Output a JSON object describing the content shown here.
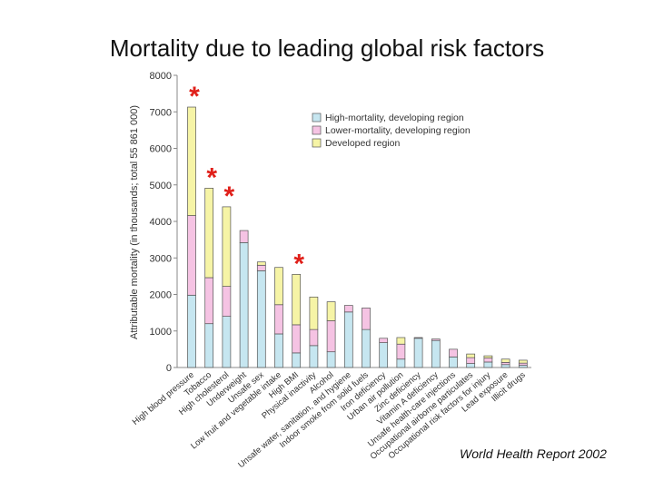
{
  "slide": {
    "title": "Mortality due to leading global risk factors",
    "source": "World Health Report 2002"
  },
  "colors": {
    "high": "#c6e6f0",
    "lower": "#f5c3e3",
    "developed": "#f6f4a6",
    "outline": "#555555",
    "axis": "#888888",
    "star": "#e0201a"
  },
  "chart_data": {
    "type": "bar",
    "stacked": true,
    "ylabel": "Attributable mortality (in thousands; total 55 861 000)",
    "ylim": [
      0,
      8000
    ],
    "yticks": [
      "0",
      "1000",
      "2000",
      "3000",
      "4000",
      "5000",
      "6000",
      "7000",
      "8000"
    ],
    "categories": [
      "High blood pressure",
      "Tobacco",
      "High cholesterol",
      "Underweight",
      "Unsafe sex",
      "Low fruit and vegetable intake",
      "High BMI",
      "Physical inactivity",
      "Alcohol",
      "Unsafe water, sanitation, and hygiene",
      "Indoor smoke from solid fuels",
      "Iron deficiency",
      "Urban air pollution",
      "Zinc deficiency",
      "Vitamin A deficiency",
      "Unsafe health-care injections",
      "Occupational airborne particulates",
      "Occupational risk factors for injury",
      "Lead exposure",
      "Illicit drugs"
    ],
    "series": [
      {
        "name": "High-mortality, developing region",
        "values": [
          1980,
          1200,
          1400,
          3420,
          2650,
          920,
          400,
          600,
          430,
          1520,
          1040,
          680,
          230,
          800,
          740,
          290,
          110,
          150,
          80,
          60
        ]
      },
      {
        "name": "Lower-mortality, developing region",
        "values": [
          2180,
          1260,
          820,
          330,
          150,
          800,
          770,
          440,
          850,
          180,
          590,
          120,
          410,
          20,
          40,
          210,
          160,
          110,
          60,
          60
        ]
      },
      {
        "name": "Developed region",
        "values": [
          2970,
          2450,
          2180,
          0,
          90,
          1020,
          1380,
          890,
          520,
          0,
          0,
          0,
          180,
          0,
          0,
          0,
          100,
          60,
          90,
          80
        ]
      }
    ],
    "legend_position": "top-right",
    "annotations": [
      {
        "text": "*",
        "category_index": 0
      },
      {
        "text": "*",
        "category_index": 1
      },
      {
        "text": "*",
        "category_index": 2
      },
      {
        "text": "*",
        "category_index": 6
      }
    ]
  }
}
